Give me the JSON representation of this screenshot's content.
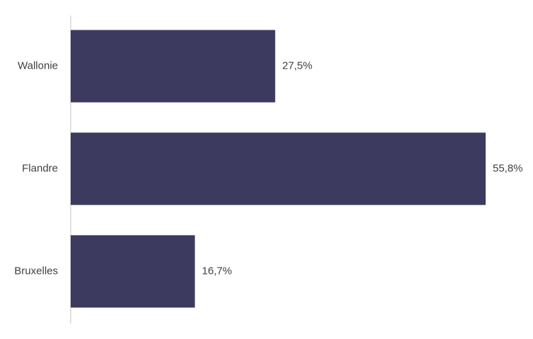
{
  "chart_data": {
    "type": "bar",
    "orientation": "horizontal",
    "categories": [
      "Wallonie",
      "Flandre",
      "Bruxelles"
    ],
    "values": [
      27.5,
      55.8,
      16.7
    ],
    "value_labels": [
      "27,5%",
      "55,8%",
      "16,7%"
    ],
    "color": "#3c3a5e"
  }
}
